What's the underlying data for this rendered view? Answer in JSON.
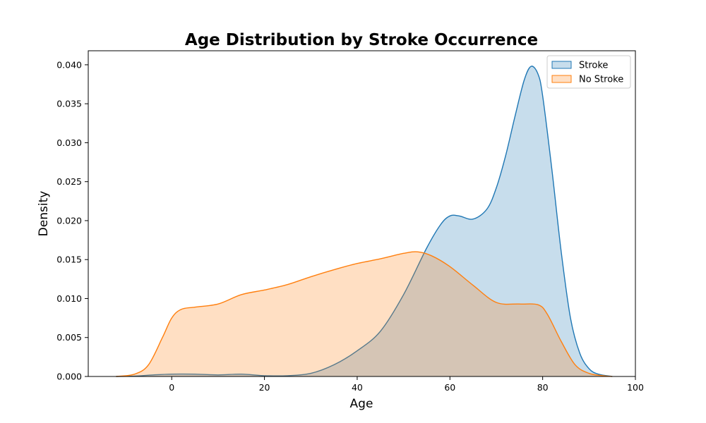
{
  "chart_data": {
    "type": "area",
    "title": "Age Distribution by Stroke Occurrence",
    "xlabel": "Age",
    "ylabel": "Density",
    "xlim": [
      -18,
      100
    ],
    "ylim": [
      0,
      0.0418
    ],
    "xticks": [
      0,
      20,
      40,
      60,
      80,
      100
    ],
    "yticks": [
      0.0,
      0.005,
      0.01,
      0.015,
      0.02,
      0.025,
      0.03,
      0.035,
      0.04
    ],
    "ytick_labels": [
      "0.000",
      "0.005",
      "0.010",
      "0.015",
      "0.020",
      "0.025",
      "0.030",
      "0.035",
      "0.040"
    ],
    "grid": false,
    "legend_position": "top-right",
    "series": [
      {
        "name": "Stroke",
        "color": "#1f77b4",
        "fill": "#1f77b4",
        "x": [
          -12,
          -8,
          -4,
          0,
          5,
          10,
          15,
          20,
          25,
          30,
          35,
          40,
          45,
          50,
          55,
          58,
          60,
          62,
          65,
          68,
          70,
          72,
          74,
          76,
          77.5,
          79,
          80,
          82,
          84,
          86,
          88,
          90,
          92,
          95
        ],
        "y": [
          0.0,
          5e-05,
          0.0002,
          0.0003,
          0.0003,
          0.0002,
          0.0003,
          0.0001,
          0.0001,
          0.0004,
          0.0015,
          0.0033,
          0.0058,
          0.0105,
          0.0165,
          0.0195,
          0.0206,
          0.0206,
          0.0202,
          0.0215,
          0.0242,
          0.0283,
          0.0333,
          0.038,
          0.0398,
          0.0388,
          0.036,
          0.0265,
          0.016,
          0.0075,
          0.003,
          0.001,
          0.0003,
          0.0
        ]
      },
      {
        "name": "No Stroke",
        "color": "#ff7f0e",
        "fill": "#ff7f0e",
        "x": [
          -12,
          -8,
          -5,
          -2,
          0,
          2,
          5,
          10,
          15,
          20,
          25,
          30,
          35,
          40,
          45,
          50,
          53,
          56,
          60,
          65,
          70,
          75,
          79,
          81,
          84,
          87,
          90,
          93,
          95
        ],
        "y": [
          0.0,
          0.0003,
          0.0015,
          0.005,
          0.0075,
          0.0086,
          0.0089,
          0.0093,
          0.0105,
          0.0111,
          0.0118,
          0.0128,
          0.0137,
          0.0145,
          0.0151,
          0.0158,
          0.016,
          0.0155,
          0.0141,
          0.0117,
          0.0095,
          0.0093,
          0.0092,
          0.008,
          0.0045,
          0.0015,
          0.0004,
          0.0001,
          0.0
        ]
      }
    ]
  }
}
